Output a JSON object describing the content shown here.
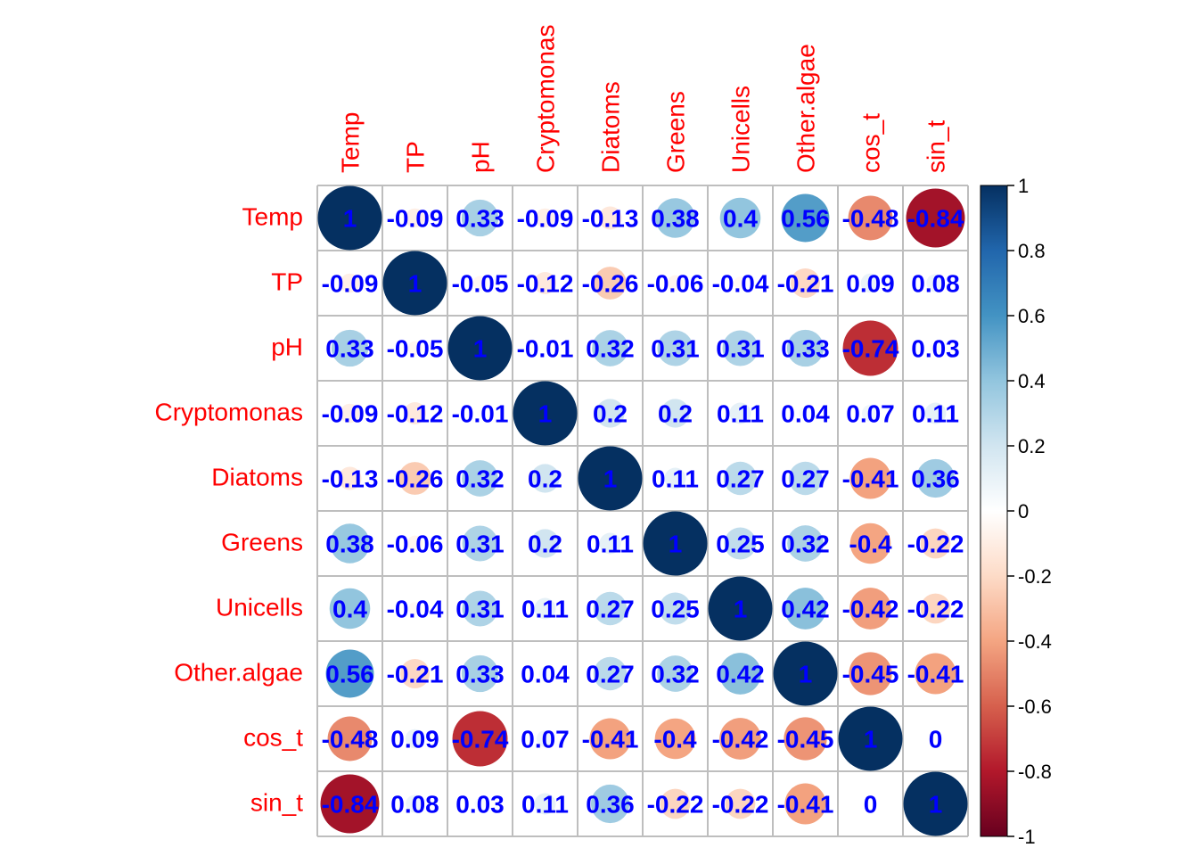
{
  "chart_data": {
    "type": "heatmap",
    "labels": [
      "Temp",
      "TP",
      "pH",
      "Cryptomonas",
      "Diatoms",
      "Greens",
      "Unicells",
      "Other.algae",
      "cos_t",
      "sin_t"
    ],
    "matrix": [
      [
        1,
        -0.09,
        0.33,
        -0.09,
        -0.13,
        0.38,
        0.4,
        0.56,
        -0.48,
        -0.84
      ],
      [
        -0.09,
        1,
        -0.05,
        -0.12,
        -0.26,
        -0.06,
        -0.04,
        -0.21,
        0.09,
        0.08
      ],
      [
        0.33,
        -0.05,
        1,
        -0.01,
        0.32,
        0.31,
        0.31,
        0.33,
        -0.74,
        0.03
      ],
      [
        -0.09,
        -0.12,
        -0.01,
        1,
        0.2,
        0.2,
        0.11,
        0.04,
        0.07,
        0.11
      ],
      [
        -0.13,
        -0.26,
        0.32,
        0.2,
        1,
        0.11,
        0.27,
        0.27,
        -0.41,
        0.36
      ],
      [
        0.38,
        -0.06,
        0.31,
        0.2,
        0.11,
        1,
        0.25,
        0.32,
        -0.4,
        -0.22
      ],
      [
        0.4,
        -0.04,
        0.31,
        0.11,
        0.27,
        0.25,
        1,
        0.42,
        -0.42,
        -0.22
      ],
      [
        0.56,
        -0.21,
        0.33,
        0.04,
        0.27,
        0.32,
        0.42,
        1,
        -0.45,
        -0.41
      ],
      [
        -0.48,
        0.09,
        -0.74,
        0.07,
        -0.41,
        -0.4,
        -0.42,
        -0.45,
        1,
        0
      ],
      [
        -0.84,
        0.08,
        0.03,
        0.11,
        0.36,
        -0.22,
        -0.22,
        -0.41,
        0,
        1
      ]
    ],
    "colorbar": {
      "range": [
        -1,
        1
      ],
      "ticks": [
        "1",
        "0.8",
        "0.6",
        "0.4",
        "0.2",
        "0",
        "-0.2",
        "-0.4",
        "-0.6",
        "-0.8",
        "-1"
      ],
      "colors": [
        "#67001F",
        "#B2182B",
        "#D6604D",
        "#F4A582",
        "#FDDBC7",
        "#FFFFFF",
        "#D1E5F0",
        "#92C5DE",
        "#4393C3",
        "#2166AC",
        "#053061"
      ]
    },
    "label_color": "#FF0000",
    "value_color": "#0000FF",
    "grid_color": "#BEBEBE",
    "marker": "circle"
  }
}
